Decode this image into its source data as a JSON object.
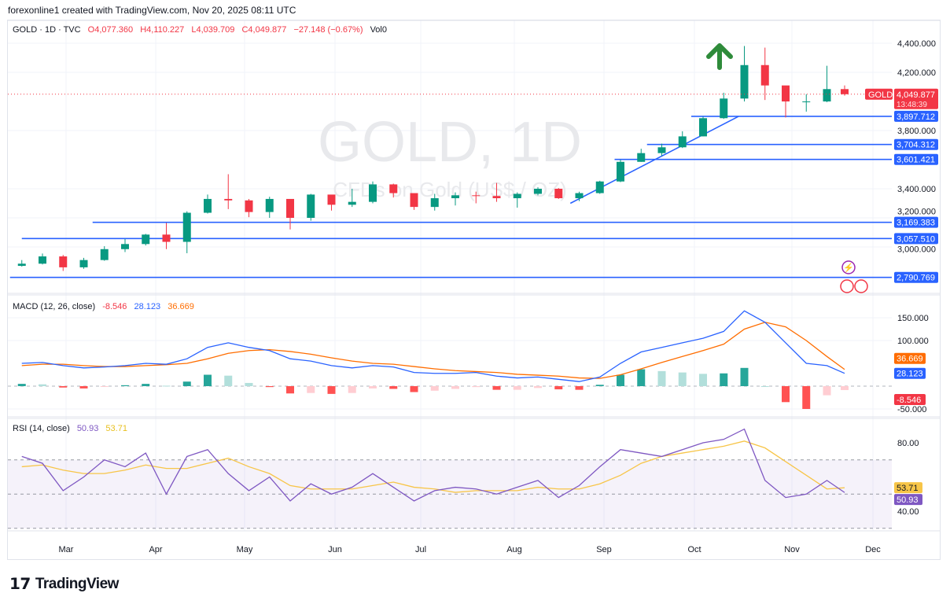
{
  "credit": "forexonline1 created with TradingView.com, Nov 20, 2025 08:11 UTC",
  "legend": {
    "symbol": "GOLD · 1D · TVC",
    "open": "O4,077.360",
    "high": "H4,110.227",
    "low": "L4,039.709",
    "close": "C4,049.877",
    "change": "−27.148 (−0.67%)",
    "vol": "Vol0"
  },
  "watermark": {
    "title": "GOLD, 1D",
    "subtitle": "CFDs on Gold (US$ / OZ)"
  },
  "macd_legend": {
    "label": "MACD (12, 26, close)",
    "hist": "-8.546",
    "macd": "28.123",
    "signal": "36.669"
  },
  "rsi_legend": {
    "label": "RSI (14, close)",
    "rsi": "50.93",
    "ma": "53.71"
  },
  "price_label": {
    "symbol": "GOLD",
    "price": "4,049.877",
    "countdown": "13:48:39"
  },
  "logo": "TradingView",
  "colors": {
    "up": "#089981",
    "down": "#f23645",
    "level": "#2962ff",
    "macd": "#2962ff",
    "signal": "#ff6d00",
    "rsi": "#7e57c2",
    "rsi_ma": "#f7c548",
    "arrow": "#2e8b3a"
  },
  "chart_data": {
    "type": "candlestick",
    "timeframe": "1D",
    "x_ticks": [
      "Mar",
      "Apr",
      "May",
      "Jun",
      "Jul",
      "Aug",
      "Sep",
      "Oct",
      "Nov",
      "Dec"
    ],
    "price_ticks": [
      "4,400.000",
      "4,200.000",
      "3,800.000",
      "3,400.000",
      "3,200.000",
      "3,000.000"
    ],
    "price_tick_values": [
      4400,
      4200,
      3800,
      3400,
      3200,
      3000
    ],
    "dates": [
      "2025-02-14",
      "2025-02-21",
      "2025-02-28",
      "2025-03-07",
      "2025-03-14",
      "2025-03-21",
      "2025-03-28",
      "2025-04-04",
      "2025-04-11",
      "2025-04-18",
      "2025-04-25",
      "2025-05-02",
      "2025-05-09",
      "2025-05-16",
      "2025-05-23",
      "2025-05-30",
      "2025-06-06",
      "2025-06-13",
      "2025-06-20",
      "2025-06-27",
      "2025-07-04",
      "2025-07-11",
      "2025-07-18",
      "2025-07-25",
      "2025-08-01",
      "2025-08-08",
      "2025-08-15",
      "2025-08-22",
      "2025-08-29",
      "2025-09-05",
      "2025-09-12",
      "2025-09-19",
      "2025-09-26",
      "2025-10-03",
      "2025-10-10",
      "2025-10-17",
      "2025-10-24",
      "2025-10-31",
      "2025-11-07",
      "2025-11-14",
      "2025-11-20"
    ],
    "close": [
      2885,
      2935,
      2860,
      2910,
      2985,
      3020,
      3085,
      3035,
      3235,
      3330,
      3320,
      3240,
      3330,
      3200,
      3360,
      3290,
      3310,
      3430,
      3370,
      3275,
      3335,
      3355,
      3350,
      3335,
      3365,
      3400,
      3335,
      3370,
      3450,
      3585,
      3645,
      3685,
      3760,
      3885,
      4020,
      4250,
      4110,
      4000,
      4000,
      4085,
      4049.877
    ],
    "high": [
      2910,
      2955,
      2945,
      2925,
      3005,
      3055,
      3090,
      3165,
      3245,
      3360,
      3500,
      3330,
      3345,
      3265,
      3365,
      3330,
      3400,
      3450,
      3435,
      3350,
      3365,
      3375,
      3380,
      3440,
      3375,
      3410,
      3405,
      3380,
      3455,
      3600,
      3675,
      3710,
      3795,
      3895,
      4060,
      4381,
      4370,
      4060,
      4050,
      4245,
      4110.227
    ],
    "low": [
      2865,
      2880,
      2835,
      2850,
      2905,
      2965,
      3010,
      2985,
      2957,
      3230,
      3260,
      3205,
      3200,
      3120,
      3180,
      3250,
      3275,
      3300,
      3340,
      3255,
      3250,
      3285,
      3300,
      3310,
      3270,
      3355,
      3330,
      3315,
      3365,
      3445,
      3585,
      3625,
      3680,
      3760,
      3880,
      4000,
      4010,
      3890,
      3930,
      3995,
      4039.709
    ],
    "levels": [
      {
        "value": 3897.712,
        "label": "3,897.712",
        "from": "2025-09-29"
      },
      {
        "value": 3704.312,
        "label": "3,704.312",
        "from": "2025-09-14"
      },
      {
        "value": 3601.421,
        "label": "3,601.421",
        "from": "2025-09-03"
      },
      {
        "value": 3169.383,
        "label": "3,169.383",
        "from": "2025-03-10"
      },
      {
        "value": 3057.51,
        "label": "3,057.510",
        "from": "2025-02-14"
      },
      {
        "value": 2790.769,
        "label": "2,790.769",
        "from": "2025-02-10"
      }
    ],
    "trendline": {
      "from": [
        "2025-08-19",
        3300
      ],
      "to": [
        "2025-10-15",
        3897
      ]
    },
    "last_price": 4049.877,
    "macd": {
      "ticks": [
        "150.000",
        "100.000",
        "-50.000"
      ],
      "tick_values": [
        150,
        100,
        -50
      ],
      "macd": [
        50,
        52,
        45,
        40,
        42,
        45,
        50,
        48,
        60,
        85,
        95,
        85,
        78,
        60,
        55,
        45,
        40,
        45,
        42,
        30,
        28,
        28,
        30,
        22,
        18,
        20,
        15,
        10,
        20,
        50,
        75,
        85,
        95,
        105,
        120,
        165,
        140,
        95,
        50,
        45,
        28.123
      ],
      "signal": [
        45,
        48,
        48,
        45,
        43,
        43,
        45,
        47,
        50,
        60,
        72,
        78,
        80,
        76,
        70,
        62,
        55,
        50,
        48,
        43,
        38,
        34,
        32,
        30,
        26,
        24,
        22,
        18,
        17,
        25,
        38,
        52,
        65,
        78,
        92,
        125,
        140,
        130,
        100,
        65,
        36.669
      ]
    },
    "rsi": {
      "ticks": [
        "80.00",
        "40.00"
      ],
      "tick_values": [
        80,
        40
      ],
      "band": [
        30,
        70
      ],
      "middle": 50,
      "rsi": [
        72,
        68,
        52,
        60,
        70,
        66,
        74,
        50,
        72,
        76,
        62,
        52,
        60,
        46,
        56,
        50,
        54,
        62,
        54,
        46,
        52,
        54,
        53,
        50,
        54,
        58,
        48,
        55,
        66,
        76,
        74,
        72,
        76,
        80,
        82,
        88,
        58,
        48,
        50,
        58,
        50.93
      ],
      "ma": [
        66,
        67,
        64,
        62,
        62,
        64,
        67,
        65,
        65,
        68,
        71,
        66,
        62,
        55,
        53,
        53,
        53,
        55,
        57,
        54,
        53,
        51,
        52,
        52,
        52,
        54,
        53,
        53,
        56,
        61,
        68,
        72,
        74,
        76,
        78,
        81,
        77,
        69,
        61,
        53,
        53.71
      ]
    }
  }
}
